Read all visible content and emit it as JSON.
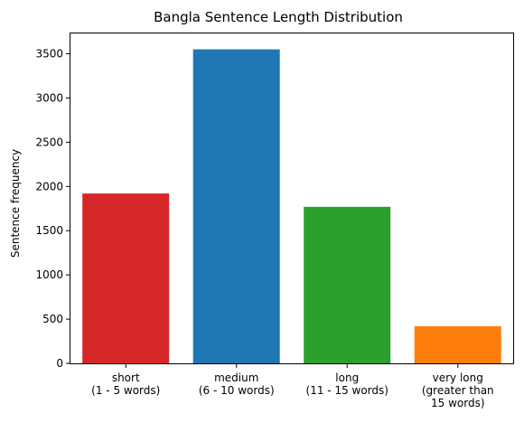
{
  "chart_data": {
    "type": "bar",
    "title": "Bangla Sentence Length Distribution",
    "xlabel": "",
    "ylabel": "Sentence frequency",
    "categories": [
      "short\n(1 - 5 words)",
      "medium\n(6 - 10 words)",
      "long\n(11 - 15 words)",
      "very long\n(greater than\n15 words)"
    ],
    "values": [
      1920,
      3550,
      1770,
      420
    ],
    "colors": [
      "#d62728",
      "#1f77b4",
      "#2ca02c",
      "#ff7f0e"
    ],
    "ylim": [
      0,
      3730
    ],
    "yticks": [
      0,
      500,
      1000,
      1500,
      2000,
      2500,
      3000,
      3500
    ],
    "grid": false,
    "legend": "none"
  }
}
